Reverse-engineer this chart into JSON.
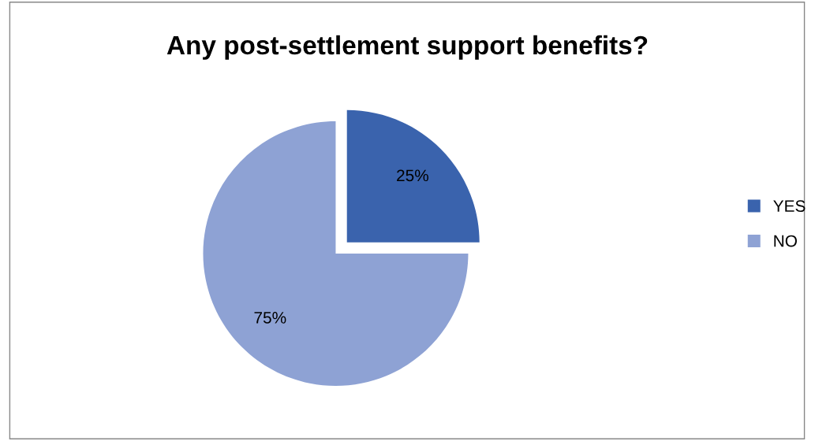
{
  "chart_data": {
    "type": "pie",
    "title": "Any post-settlement support benefits?",
    "categories": [
      "YES",
      "NO"
    ],
    "values": [
      25,
      75
    ],
    "colors": [
      "#3a63ad",
      "#8ea2d4"
    ],
    "value_labels": [
      "25%",
      "75%"
    ],
    "legend": "right"
  }
}
